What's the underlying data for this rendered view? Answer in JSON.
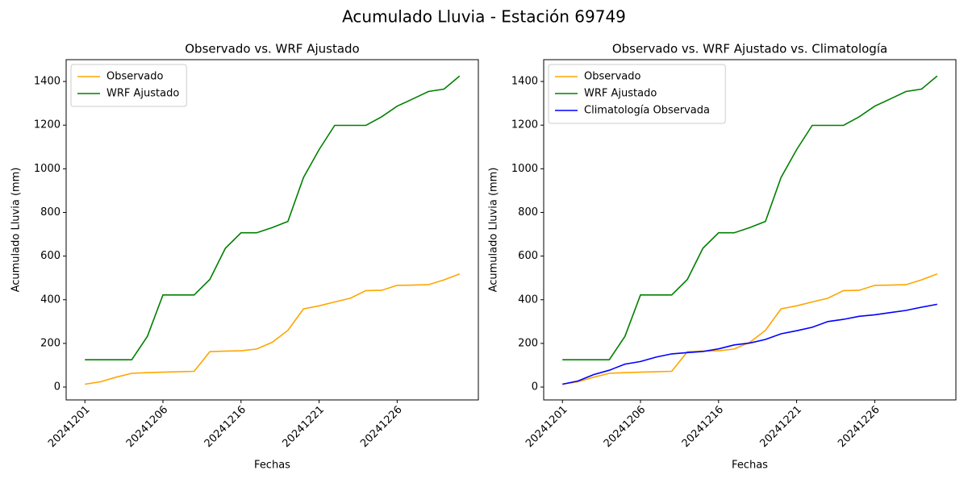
{
  "title": "Acumulado Lluvia - Estación 69749",
  "chart_data": [
    {
      "type": "line",
      "title": "Observado vs. WRF Ajustado",
      "xlabel": "Fechas",
      "ylabel": "Acumulado Lluvia (mm)",
      "categories": [
        "20241201",
        null,
        null,
        null,
        null,
        "20241206",
        null,
        null,
        null,
        null,
        "20241216",
        null,
        null,
        null,
        null,
        "20241221",
        null,
        null,
        null,
        null,
        "20241226",
        null,
        null,
        null,
        null
      ],
      "series": [
        {
          "name": "Observado",
          "color": "orange",
          "values": [
            13,
            24,
            45,
            63,
            66,
            68,
            70,
            72,
            162,
            165,
            166,
            174,
            205,
            260,
            358,
            372,
            390,
            407,
            442,
            443,
            466,
            467,
            469,
            491,
            518
          ]
        },
        {
          "name": "WRF Ajustado",
          "color": "green",
          "values": [
            125,
            125,
            125,
            125,
            232,
            422,
            422,
            422,
            493,
            636,
            707,
            707,
            731,
            759,
            960,
            1088,
            1199,
            1199,
            1199,
            1238,
            1287,
            1320,
            1354,
            1365,
            1425
          ]
        }
      ],
      "ylim": [
        -59,
        1500
      ],
      "yticks": [
        0,
        200,
        400,
        600,
        800,
        1000,
        1200,
        1400
      ],
      "legend": "upper left"
    },
    {
      "type": "line",
      "title": "Observado vs. WRF Ajustado vs. Climatología",
      "xlabel": "Fechas",
      "ylabel": "Acumulado Lluvia (mm)",
      "categories": [
        "20241201",
        null,
        null,
        null,
        null,
        "20241206",
        null,
        null,
        null,
        null,
        "20241216",
        null,
        null,
        null,
        null,
        "20241221",
        null,
        null,
        null,
        null,
        "20241226",
        null,
        null,
        null,
        null
      ],
      "series": [
        {
          "name": "Observado",
          "color": "orange",
          "values": [
            13,
            24,
            45,
            63,
            66,
            68,
            70,
            72,
            162,
            165,
            166,
            174,
            205,
            260,
            358,
            372,
            390,
            407,
            442,
            443,
            466,
            467,
            469,
            491,
            518
          ]
        },
        {
          "name": "WRF Ajustado",
          "color": "green",
          "values": [
            125,
            125,
            125,
            125,
            232,
            422,
            422,
            422,
            493,
            636,
            707,
            707,
            731,
            759,
            960,
            1088,
            1199,
            1199,
            1199,
            1238,
            1287,
            1320,
            1354,
            1365,
            1425
          ]
        },
        {
          "name": "Climatología Observada",
          "color": "blue",
          "values": [
            13,
            28,
            57,
            77,
            105,
            117,
            137,
            152,
            158,
            163,
            175,
            193,
            202,
            218,
            244,
            258,
            274,
            300,
            310,
            324,
            331,
            341,
            351,
            366,
            379
          ]
        }
      ],
      "ylim": [
        -59,
        1500
      ],
      "yticks": [
        0,
        200,
        400,
        600,
        800,
        1000,
        1200,
        1400
      ],
      "legend": "upper left"
    }
  ]
}
